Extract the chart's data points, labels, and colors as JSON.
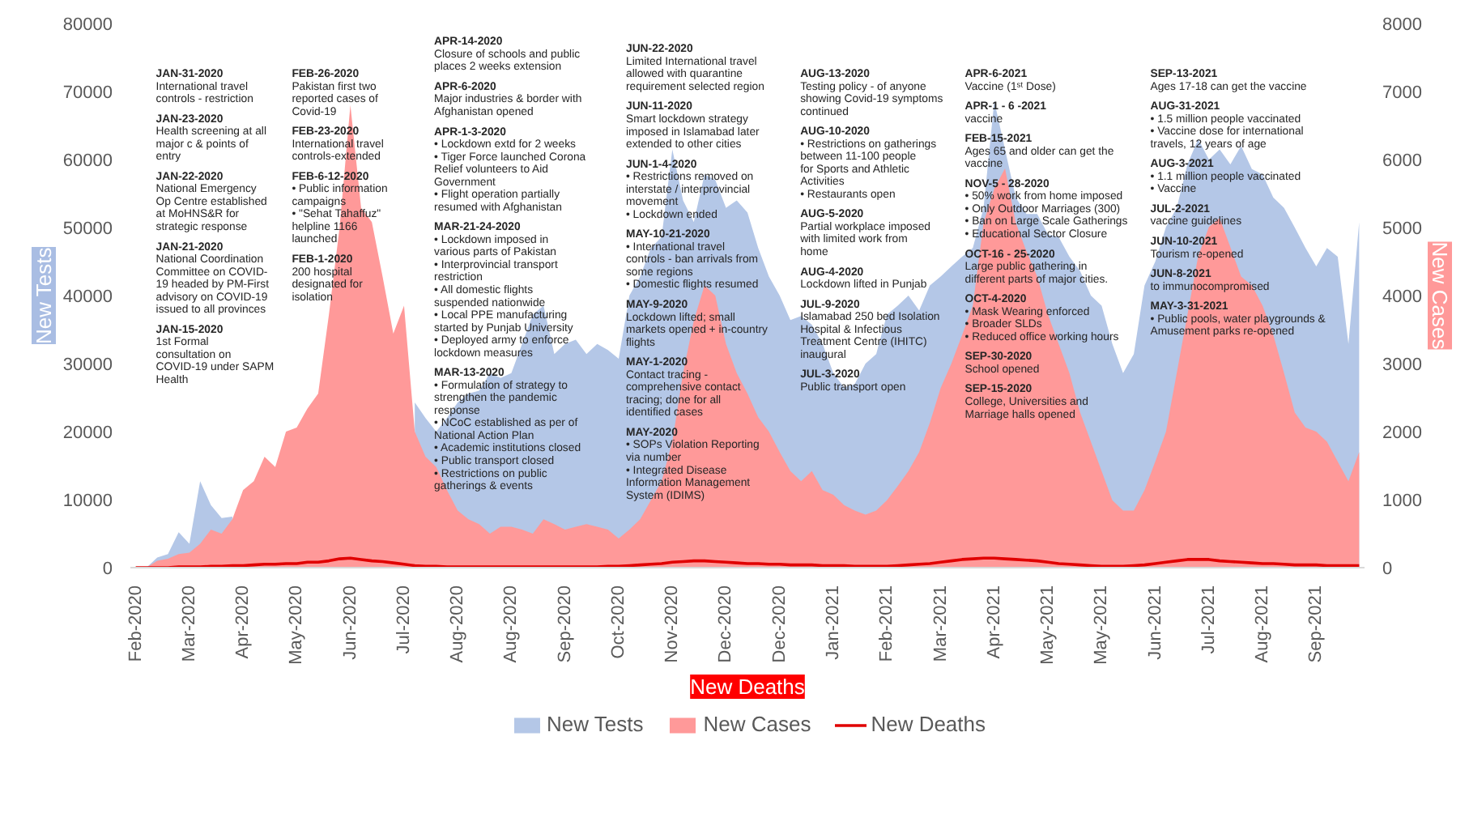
{
  "chart_data": {
    "type": "area",
    "categories": [
      "Feb-2020",
      null,
      null,
      null,
      null,
      "Mar-2020",
      null,
      null,
      null,
      null,
      "Apr-2020",
      null,
      null,
      null,
      null,
      "May-2020",
      null,
      null,
      null,
      null,
      "Jun-2020",
      null,
      null,
      null,
      null,
      "Jul-2020",
      null,
      null,
      null,
      null,
      "Aug-2020",
      null,
      null,
      null,
      null,
      "Aug-2020",
      null,
      null,
      null,
      null,
      "Sep-2020",
      null,
      null,
      null,
      null,
      "Oct-2020",
      null,
      null,
      null,
      null,
      "Nov-2020",
      null,
      null,
      null,
      null,
      "Dec-2020",
      null,
      null,
      null,
      null,
      "Dec-2020",
      null,
      null,
      null,
      null,
      "Jan-2021",
      null,
      null,
      null,
      null,
      "Feb-2021",
      null,
      null,
      null,
      null,
      "Mar-2021",
      null,
      null,
      null,
      null,
      "Apr-2021",
      null,
      null,
      null,
      null,
      "May-2021",
      null,
      null,
      null,
      null,
      "May-2021",
      null,
      null,
      null,
      null,
      "Jun-2021",
      null,
      null,
      null,
      null,
      "Jul-2021",
      null,
      null,
      null,
      null,
      "Aug-2021",
      null,
      null,
      null,
      null,
      "Sep-2021",
      null,
      null,
      null,
      null
    ],
    "series": [
      {
        "name": "New Tests",
        "color": "#b4c7e7",
        "values": [
          0,
          0,
          1500,
          2000,
          5200,
          3500,
          12700,
          9200,
          7300,
          7500,
          null,
          null,
          null,
          null,
          null,
          null,
          null,
          null,
          null,
          null,
          null,
          null,
          null,
          null,
          null,
          null,
          24300,
          22000,
          20000,
          22000,
          24300,
          25600,
          26000,
          28600,
          27900,
          28600,
          32900,
          37200,
          38500,
          31400,
          32900,
          33500,
          31400,
          32900,
          32000,
          30700,
          40000,
          42800,
          47000,
          48600,
          61500,
          54000,
          50800,
          57800,
          57000,
          52900,
          54000,
          52200,
          47000,
          42800,
          40000,
          36400,
          37000,
          35700,
          32900,
          28600,
          26500,
          27000,
          30000,
          31400,
          37200,
          38500,
          40000,
          37800,
          41500,
          42800,
          44300,
          45700,
          47000,
          52900,
          68600,
          61500,
          54400,
          52000,
          52000,
          49000,
          48600,
          45700,
          43600,
          40000,
          38500,
          32900,
          28600,
          31400,
          41500,
          45000,
          50100,
          52900,
          59300,
          63000,
          60000,
          61500,
          59300,
          62000,
          58600,
          57800,
          54400,
          52900,
          50000,
          47000,
          44300,
          47000,
          45700,
          32900,
          50800
        ]
      },
      {
        "name": "New Cases",
        "color": "#ff9999",
        "axis": "y2",
        "values": [
          0,
          0,
          100,
          130,
          200,
          220,
          350,
          560,
          500,
          710,
          1140,
          1270,
          1630,
          1480,
          2000,
          2060,
          2340,
          2560,
          3720,
          5010,
          6800,
          5290,
          5080,
          4280,
          3440,
          3850,
          2000,
          1630,
          1480,
          1140,
          840,
          710,
          640,
          500,
          600,
          600,
          560,
          500,
          710,
          640,
          560,
          600,
          640,
          600,
          560,
          430,
          560,
          710,
          990,
          1270,
          1850,
          2860,
          3630,
          4150,
          4000,
          3290,
          2860,
          2560,
          2210,
          2000,
          1700,
          1420,
          1270,
          1420,
          1140,
          1070,
          920,
          840,
          780,
          840,
          990,
          1200,
          1420,
          1700,
          2130,
          2640,
          3000,
          3420,
          3850,
          5070,
          5570,
          5870,
          5070,
          4650,
          4280,
          3720,
          3290,
          2860,
          2280,
          1850,
          1420,
          990,
          840,
          840,
          1140,
          1560,
          2000,
          2860,
          3720,
          4580,
          5010,
          5140,
          4710,
          4280,
          4150,
          3850,
          3420,
          2860,
          2280,
          2060,
          2000,
          1850,
          1560,
          1270,
          1700
        ]
      },
      {
        "name": "New Deaths",
        "color": "#e00000",
        "type": "line",
        "axis": "y2",
        "values": [
          0,
          0,
          0,
          0,
          10,
          10,
          10,
          20,
          20,
          30,
          30,
          40,
          50,
          50,
          60,
          60,
          80,
          80,
          100,
          130,
          140,
          120,
          100,
          90,
          70,
          50,
          30,
          20,
          20,
          10,
          10,
          10,
          10,
          10,
          10,
          10,
          10,
          10,
          10,
          10,
          10,
          10,
          10,
          10,
          20,
          20,
          30,
          40,
          50,
          60,
          80,
          90,
          100,
          100,
          90,
          80,
          70,
          60,
          60,
          50,
          50,
          40,
          40,
          40,
          30,
          30,
          30,
          20,
          20,
          20,
          20,
          30,
          40,
          50,
          60,
          80,
          100,
          120,
          130,
          140,
          140,
          130,
          120,
          110,
          100,
          80,
          60,
          50,
          40,
          30,
          20,
          20,
          20,
          30,
          40,
          60,
          80,
          100,
          120,
          120,
          120,
          100,
          90,
          80,
          70,
          60,
          60,
          50,
          40,
          40,
          40,
          30,
          30,
          30,
          30
        ]
      }
    ],
    "xlabel": "New Deaths",
    "ylabel": "New Tests",
    "y2label": "New Cases",
    "ylim": [
      0,
      80000
    ],
    "yticks": [
      0,
      10000,
      20000,
      30000,
      40000,
      50000,
      60000,
      70000,
      80000
    ],
    "y2lim": [
      0,
      8000
    ],
    "y2ticks": [
      0,
      1000,
      2000,
      3000,
      4000,
      5000,
      6000,
      7000,
      8000
    ],
    "legend": "bottom",
    "annotations": [
      "JAN-31-2020\nInternational travel\ncontrols - restriction",
      "JAN-23-2020\nHealth screening at all\nmajor c & points of\nentry",
      "JAN-22-2020\nNational Emergency\nOp Centre established\nat MoHNS&R for\nstrategic response",
      "JAN-21-2020\nNational Coordination\nCommittee on COVID-\n19  headed by PM-First\nadvisory on COVID-19\nissued to all provinces",
      "JAN-15-2020\n1st Formal\nconsultation on\nCOVID-19 under SAPM\nHealth",
      "FEB-26-2020\nPakistan first two\nreported cases of\nCovid-19",
      "FEB-23-2020\nInternational travel\ncontrols-extended",
      "FEB-6-12-2020\n• Public information\n  campaigns\n• \"Sehat Tahaffuz\"\n  helpline 1166\n  launched",
      "FEB-1-2020\n200 hospital\ndesignated for\nisolation",
      "APR-14-2020\nClosure of schools and public\nplaces 2 weeks extension",
      "APR-6-2020\nMajor industries & border with\nAfghanistan opened",
      "APR-1-3-2020\n• Lockdown extd for 2 weeks\n• Tiger Force launched Corona\n  Relief volunteers to Aid\n  Government\n• Flight operation partially\n  resumed with Afghanistan",
      "MAR-21-24-2020\n• Lockdown imposed in\n  various parts of Pakistan\n• Interprovincial transport\n  restriction\n• All domestic flights\n  suspended nationwide\n• Local PPE manufacturing\n  started by Punjab University\n• Deployed army to enforce\n  lockdown measures",
      "MAR-13-2020\n• Formulation of strategy to\n  strengthen the pandemic\n  response\n• NCoC established as per of\n  National Action Plan\n• Academic institutions closed\n• Public transport closed\n• Restrictions on public\n  gatherings & events",
      "JUN-22-2020\nLimited International travel\nallowed with quarantine\nrequirement selected region",
      "JUN-11-2020\nSmart lockdown strategy\nimposed in Islamabad later\nextended to other cities",
      "JUN-1-4-2020\n• Restrictions removed on\n  interstate / interprovincial\n  movement\n• Lockdown ended",
      "MAY-10-21-2020\n• International travel\n  controls - ban arrivals from\n  some regions\n• Domestic flights resumed",
      "MAY-9-2020\nLockdown lifted; small\nmarkets opened + in-country\nflights",
      "MAY-1-2020\nContact tracing -\ncomprehensive contact\ntracing; done for all\nidentified cases",
      "MAY-2020\n• SOPs Violation Reporting\n  via number\n• Integrated Disease\n  Information Management\n  System (IDIMS)",
      "AUG-13-2020\nTesting policy - of anyone\nshowing Covid-19 symptoms\ncontinued",
      "AUG-10-2020\n• Restrictions on gatherings\n  between 11-100 people\n  for Sports and Athletic\n  Activities\n• Restaurants open",
      "AUG-5-2020\nPartial workplace imposed\nwith limited work from\nhome",
      "AUG-4-2020\nLockdown lifted in Punjab",
      "JUL-9-2020\nIslamabad 250 bed Isolation\nHospital & Infectious\nTreatment Centre (IHITC)\ninaugural",
      "JUL-3-2020\nPublic transport open",
      "APR-6-2021\nVaccine (1ˢᵗ Dose)",
      "APR-1 - 6 -2021\nvaccine",
      "FEB-15-2021\nAges 65 and older can get the\nvaccine",
      "NOV-5 - 28-2020\n• 50% work from home imposed\n• Only Outdoor Marriages (300)\n• Ban on Large Scale Gatherings\n• Educational Sector Closure",
      "OCT-16 - 25-2020\nLarge public gathering in\ndifferent parts of major cities.",
      "OCT-4-2020\n• Mask Wearing enforced\n• Broader SLDs\n• Reduced office working hours",
      "SEP-30-2020\nSchool opened",
      "SEP-15-2020\nCollege, Universities and\nMarriage halls opened",
      "SEP-13-2021\nAges 17-18 can get the vaccine",
      "AUG-31-2021\n•  1.5 million people vaccinated\n•  Vaccine dose for international\n   travels, 12 years of age",
      "AUG-3-2021\n•  1.1 million people vaccinated\n•  Vaccine",
      "JUL-2-2021\nvaccine guidelines",
      "JUN-10-2021\nTourism re-opened",
      "JUN-8-2021\nto immunocompromised",
      "MAY-3-31-2021\n• Public pools, water playgrounds &\n  Amusement parks re-opened"
    ]
  }
}
